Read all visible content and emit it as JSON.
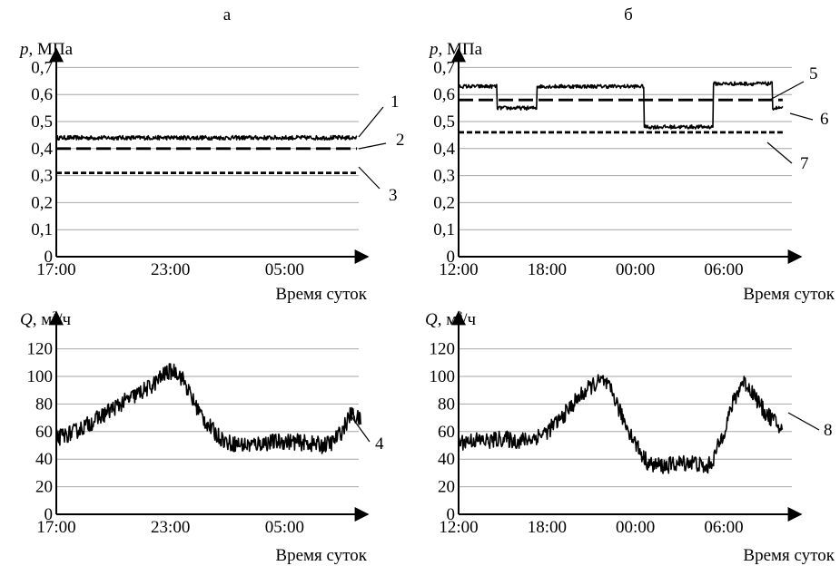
{
  "panel_labels": [
    "а",
    "б"
  ],
  "chart_data": [
    {
      "id": "a_pressure",
      "type": "line",
      "ylabel_var": "p",
      "ylabel_unit": ", МПа",
      "xlabel": "Время суток",
      "yticks": [
        "0",
        "0,1",
        "0,2",
        "0,3",
        "0,4",
        "0,5",
        "0,6",
        "0,7"
      ],
      "ylim": [
        0,
        0.8
      ],
      "xticks": [
        "17:00",
        "23:00",
        "05:00"
      ],
      "xlim_hours": [
        0,
        15.8
      ],
      "xtick_hours": [
        0,
        6,
        12
      ],
      "grid": true,
      "series": [
        {
          "label": "1",
          "style": "noisy",
          "values": [
            [
              0,
              0.44
            ],
            [
              15.8,
              0.44
            ]
          ],
          "noise": 0.008
        },
        {
          "label": "2",
          "style": "dashed",
          "values": [
            [
              0,
              0.4
            ],
            [
              15.8,
              0.4
            ]
          ]
        },
        {
          "label": "3",
          "style": "dotted",
          "values": [
            [
              0,
              0.31
            ],
            [
              15.8,
              0.31
            ]
          ]
        }
      ]
    },
    {
      "id": "b_pressure",
      "type": "line",
      "ylabel_var": "p",
      "ylabel_unit": ", МПа",
      "xlabel": "Время суток",
      "yticks": [
        "0",
        "0,1",
        "0,2",
        "0,3",
        "0,4",
        "0,5",
        "0,6",
        "0,7"
      ],
      "ylim": [
        0,
        0.8
      ],
      "xticks": [
        "12:00",
        "18:00",
        "00:00",
        "06:00"
      ],
      "xlim_hours": [
        0,
        22.5
      ],
      "xtick_hours": [
        0,
        6,
        12,
        18
      ],
      "grid": true,
      "series": [
        {
          "label": "5",
          "style": "noisy",
          "step": true,
          "noise": 0.007,
          "values": [
            [
              0,
              0.63
            ],
            [
              2.6,
              0.63
            ],
            [
              2.6,
              0.55
            ],
            [
              5.3,
              0.55
            ],
            [
              5.3,
              0.63
            ],
            [
              12.6,
              0.63
            ],
            [
              12.6,
              0.48
            ],
            [
              17.3,
              0.48
            ],
            [
              17.3,
              0.64
            ],
            [
              21.3,
              0.64
            ],
            [
              21.3,
              0.55
            ],
            [
              22.0,
              0.55
            ]
          ]
        },
        {
          "label": "6",
          "style": "dashed",
          "values": [
            [
              0,
              0.58
            ],
            [
              22.0,
              0.58
            ]
          ]
        },
        {
          "label": "7",
          "style": "dotted",
          "values": [
            [
              0,
              0.46
            ],
            [
              22.0,
              0.46
            ]
          ]
        }
      ]
    },
    {
      "id": "a_flow",
      "type": "line",
      "ylabel_var": "Q",
      "ylabel_unit": ", м",
      "ylabel_sup": "3",
      "ylabel_tail": "/ч",
      "xlabel": "Время суток",
      "yticks": [
        "0",
        "20",
        "40",
        "60",
        "80",
        "100",
        "120"
      ],
      "ylim": [
        0,
        130
      ],
      "xticks": [
        "17:00",
        "23:00",
        "05:00"
      ],
      "xlim_hours": [
        0,
        15.8
      ],
      "xtick_hours": [
        0,
        6,
        12
      ],
      "grid": true,
      "series": [
        {
          "label": "4",
          "style": "noisy",
          "noise": 6,
          "values": [
            [
              0,
              55
            ],
            [
              1,
              60
            ],
            [
              2,
              68
            ],
            [
              3,
              77
            ],
            [
              4,
              85
            ],
            [
              5,
              93
            ],
            [
              5.8,
              103
            ],
            [
              6.3,
              104
            ],
            [
              6.7,
              97
            ],
            [
              7.2,
              82
            ],
            [
              7.8,
              68
            ],
            [
              8.4,
              58
            ],
            [
              9,
              52
            ],
            [
              10,
              50
            ],
            [
              11,
              52
            ],
            [
              12,
              53
            ],
            [
              13,
              52
            ],
            [
              14,
              50
            ],
            [
              14.5,
              52
            ],
            [
              15,
              60
            ],
            [
              15.5,
              73
            ],
            [
              16,
              68
            ]
          ]
        }
      ]
    },
    {
      "id": "b_flow",
      "type": "line",
      "ylabel_var": "Q",
      "ylabel_unit": ", м",
      "ylabel_sup": "3",
      "ylabel_tail": "/ч",
      "xlabel": "Время суток",
      "yticks": [
        "0",
        "20",
        "40",
        "60",
        "80",
        "100",
        "120"
      ],
      "ylim": [
        0,
        130
      ],
      "xticks": [
        "12:00",
        "18:00",
        "00:00",
        "06:00"
      ],
      "xlim_hours": [
        0,
        22.5
      ],
      "xtick_hours": [
        0,
        6,
        12,
        18
      ],
      "grid": true,
      "series": [
        {
          "label": "8",
          "style": "noisy",
          "noise": 6,
          "values": [
            [
              0,
              52
            ],
            [
              1,
              54
            ],
            [
              2,
              53
            ],
            [
              3,
              55
            ],
            [
              4,
              53
            ],
            [
              5,
              55
            ],
            [
              6,
              60
            ],
            [
              7,
              70
            ],
            [
              8,
              83
            ],
            [
              9,
              93
            ],
            [
              9.8,
              97
            ],
            [
              10.5,
              87
            ],
            [
              11,
              73
            ],
            [
              11.7,
              58
            ],
            [
              12.5,
              42
            ],
            [
              13,
              36
            ],
            [
              14,
              35
            ],
            [
              15,
              37
            ],
            [
              16,
              38
            ],
            [
              16.8,
              33
            ],
            [
              17.3,
              40
            ],
            [
              18,
              60
            ],
            [
              18.6,
              80
            ],
            [
              19.3,
              97
            ],
            [
              20,
              88
            ],
            [
              20.7,
              75
            ],
            [
              21.4,
              68
            ],
            [
              22,
              60
            ]
          ]
        }
      ]
    }
  ]
}
